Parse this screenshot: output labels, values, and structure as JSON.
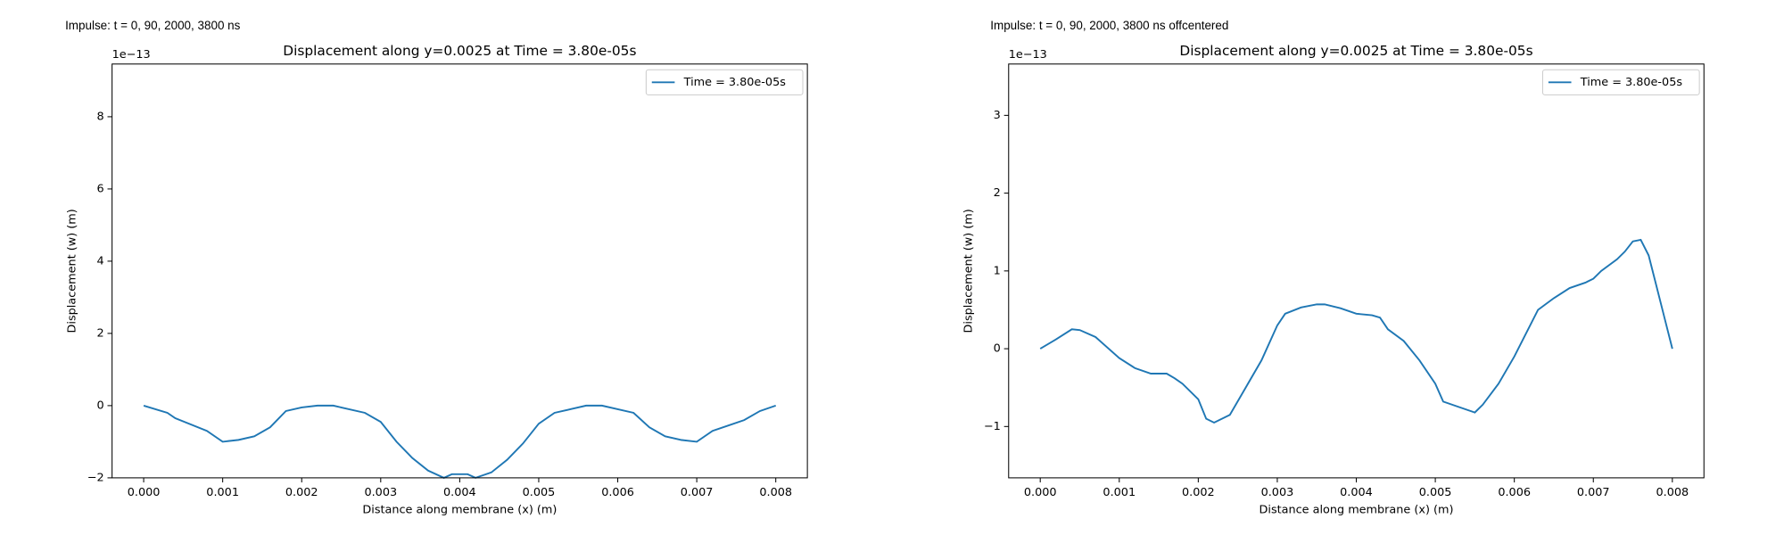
{
  "chart_data": [
    {
      "type": "line",
      "caption": "Impulse: t = 0, 90, 2000, 3800 ns",
      "title": "Displacement along y=0.0025 at Time = 3.80e-05s",
      "x_label": "Distance along membrane (x) (m)",
      "y_label": "Displacement (w) (m)",
      "y_offset_label": "1e−13",
      "legend": "upper right",
      "x": [
        0,
        0.0003,
        0.0004,
        0.0008,
        0.001,
        0.0012,
        0.0014,
        0.0016,
        0.0018,
        0.002,
        0.0022,
        0.0024,
        0.0028,
        0.003,
        0.0032,
        0.0034,
        0.0036,
        0.0038,
        0.0039,
        0.0041,
        0.0042,
        0.0044,
        0.0046,
        0.0048,
        0.005,
        0.0052,
        0.0054,
        0.0056,
        0.0058,
        0.006,
        0.0062,
        0.0064,
        0.0066,
        0.0068,
        0.007,
        0.0072,
        0.0074,
        0.0076,
        0.0078,
        0.008
      ],
      "series": [
        {
          "name": "Time = 3.80e-05s",
          "color": "#1f77b4",
          "values": [
            0,
            -0.2,
            -0.35,
            -0.7,
            -1.0,
            -0.95,
            -0.85,
            -0.6,
            -0.15,
            -0.05,
            0,
            0,
            -0.2,
            -0.45,
            -1.0,
            -1.45,
            -1.8,
            -2.0,
            -1.9,
            -1.9,
            -2.0,
            -1.85,
            -1.5,
            -1.05,
            -0.5,
            -0.2,
            -0.1,
            0,
            0,
            -0.1,
            -0.2,
            -0.6,
            -0.85,
            -0.95,
            -1.0,
            -0.7,
            -0.55,
            -0.4,
            -0.15,
            0
          ]
        }
      ],
      "xlim": [
        -0.0004,
        0.0084
      ],
      "ylim": [
        -2,
        9.46
      ],
      "xticks": [
        {
          "value": 0,
          "label": "0.000"
        },
        {
          "value": 0.001,
          "label": "0.001"
        },
        {
          "value": 0.002,
          "label": "0.002"
        },
        {
          "value": 0.003,
          "label": "0.003"
        },
        {
          "value": 0.004,
          "label": "0.004"
        },
        {
          "value": 0.005,
          "label": "0.005"
        },
        {
          "value": 0.006,
          "label": "0.006"
        },
        {
          "value": 0.007,
          "label": "0.007"
        },
        {
          "value": 0.008,
          "label": "0.008"
        }
      ],
      "yticks": [
        {
          "value": -2,
          "label": "−2"
        },
        0,
        2,
        4,
        6,
        8
      ]
    },
    {
      "type": "line",
      "caption": "Impulse: t = 0, 90, 2000, 3800 ns offcentered",
      "title": "Displacement along y=0.0025 at Time = 3.80e-05s",
      "x_label": "Distance along membrane (x) (m)",
      "y_label": "Displacement (w) (m)",
      "y_offset_label": "1e−13",
      "legend": "upper right",
      "x": [
        0,
        0.0002,
        0.0004,
        0.0005,
        0.0007,
        0.001,
        0.0012,
        0.0014,
        0.0016,
        0.0017,
        0.0018,
        0.002,
        0.0021,
        0.0022,
        0.0024,
        0.0026,
        0.0028,
        0.003,
        0.0031,
        0.0033,
        0.0035,
        0.0036,
        0.0038,
        0.004,
        0.0042,
        0.0043,
        0.0044,
        0.0046,
        0.0048,
        0.005,
        0.0051,
        0.0053,
        0.0055,
        0.0056,
        0.0058,
        0.006,
        0.0062,
        0.0063,
        0.0065,
        0.0067,
        0.0069,
        0.007,
        0.0071,
        0.0073,
        0.0074,
        0.0075,
        0.0076,
        0.0077,
        0.0078,
        0.0079,
        0.008
      ],
      "series": [
        {
          "name": "Time = 3.80e-05s",
          "color": "#1f77b4",
          "values": [
            0,
            0.12,
            0.25,
            0.24,
            0.15,
            -0.12,
            -0.25,
            -0.32,
            -0.32,
            -0.38,
            -0.45,
            -0.65,
            -0.9,
            -0.95,
            -0.85,
            -0.5,
            -0.15,
            0.3,
            0.45,
            0.53,
            0.57,
            0.57,
            0.52,
            0.45,
            0.43,
            0.4,
            0.25,
            0.1,
            -0.15,
            -0.45,
            -0.68,
            -0.75,
            -0.82,
            -0.72,
            -0.45,
            -0.1,
            0.3,
            0.5,
            0.65,
            0.78,
            0.85,
            0.9,
            1.0,
            1.15,
            1.25,
            1.38,
            1.4,
            1.2,
            0.8,
            0.4,
            0
          ]
        }
      ],
      "xlim": [
        -0.0004,
        0.0084
      ],
      "ylim": [
        -1.66,
        3.66
      ],
      "xticks": [
        {
          "value": 0,
          "label": "0.000"
        },
        {
          "value": 0.001,
          "label": "0.001"
        },
        {
          "value": 0.002,
          "label": "0.002"
        },
        {
          "value": 0.003,
          "label": "0.003"
        },
        {
          "value": 0.004,
          "label": "0.004"
        },
        {
          "value": 0.005,
          "label": "0.005"
        },
        {
          "value": 0.006,
          "label": "0.006"
        },
        {
          "value": 0.007,
          "label": "0.007"
        },
        {
          "value": 0.008,
          "label": "0.008"
        }
      ],
      "yticks": [
        {
          "value": -1,
          "label": "−1"
        },
        0,
        1,
        2,
        3
      ]
    }
  ]
}
